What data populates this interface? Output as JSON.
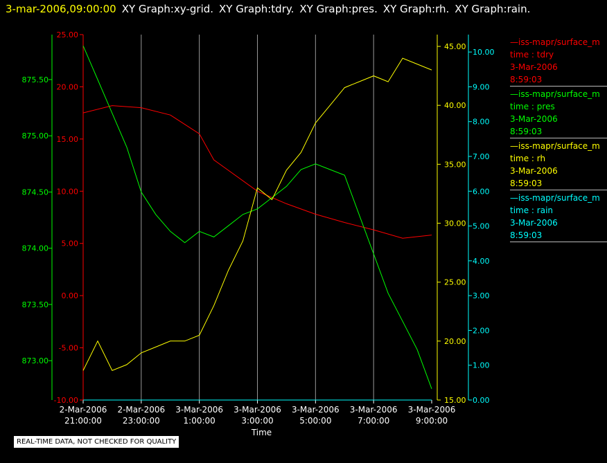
{
  "header": {
    "timestamp": "3-mar-2006,09:00:00",
    "graph_titles": [
      "XY Graph:xy-grid.",
      "XY Graph:tdry.",
      "XY Graph:pres.",
      "XY Graph:rh.",
      "XY Graph:rain."
    ]
  },
  "notice": "REAL-TIME DATA, NOT CHECKED FOR QUALITY",
  "colors": {
    "tdry": "#ff0000",
    "pres": "#00ff00",
    "rh": "#ffff00",
    "rain": "#00ffff",
    "grid": "#999999",
    "background": "#000000"
  },
  "legend": [
    {
      "name": "—iss-mapr/surface_m",
      "var": "time : tdry",
      "date": "3-Mar-2006",
      "time": "8:59:03",
      "color": "#ff0000"
    },
    {
      "name": "—iss-mapr/surface_m",
      "var": "time : pres",
      "date": "3-Mar-2006",
      "time": "8:59:03",
      "color": "#00ff00"
    },
    {
      "name": "—iss-mapr/surface_m",
      "var": "time : rh",
      "date": "3-Mar-2006",
      "time": "8:59:03",
      "color": "#ffff00"
    },
    {
      "name": "—iss-mapr/surface_m",
      "var": "time : rain",
      "date": "3-Mar-2006",
      "time": "8:59:03",
      "color": "#00ffff"
    }
  ],
  "chart_data": {
    "type": "line",
    "xlabel": "Time",
    "x_ticks": [
      [
        "2-Mar-2006",
        "21:00:00"
      ],
      [
        "2-Mar-2006",
        "23:00:00"
      ],
      [
        "3-Mar-2006",
        "1:00:00"
      ],
      [
        "3-Mar-2006",
        "3:00:00"
      ],
      [
        "3-Mar-2006",
        "5:00:00"
      ],
      [
        "3-Mar-2006",
        "7:00:00"
      ],
      [
        "3-Mar-2006",
        "9:00:00"
      ]
    ],
    "xlim": [
      "2006-03-02 21:00",
      "2006-03-03 09:00"
    ],
    "axes": {
      "tdry": {
        "ylim": [
          -10,
          25
        ],
        "ticks": [
          "-10.00",
          "-5.00",
          "0.00",
          "5.00",
          "10.00",
          "15.00",
          "20.00",
          "25.00"
        ]
      },
      "pres": {
        "ylim": [
          872.65,
          875.9
        ],
        "ticks": [
          "873.00",
          "873.50",
          "874.00",
          "874.50",
          "875.00",
          "875.50"
        ]
      },
      "rh": {
        "ylim": [
          15,
          46
        ],
        "ticks": [
          "15.00",
          "20.00",
          "25.00",
          "30.00",
          "35.00",
          "40.00",
          "45.00"
        ]
      },
      "rain": {
        "ylim": [
          0,
          10.5
        ],
        "ticks": [
          "0.00",
          "1.00",
          "2.00",
          "3.00",
          "4.00",
          "5.00",
          "6.00",
          "7.00",
          "8.00",
          "9.00",
          "10.00"
        ]
      }
    },
    "grid": true,
    "series": [
      {
        "name": "time : tdry",
        "color": "#ff0000",
        "axis": "tdry",
        "x": [
          "2006-03-02 21:00",
          "2006-03-02 22:00",
          "2006-03-02 23:00",
          "2006-03-03 00:00",
          "2006-03-03 01:00",
          "2006-03-03 01:30",
          "2006-03-03 02:00",
          "2006-03-03 03:00",
          "2006-03-03 04:00",
          "2006-03-03 05:00",
          "2006-03-03 06:00",
          "2006-03-03 07:00",
          "2006-03-03 08:00",
          "2006-03-03 09:00"
        ],
        "values": [
          17.5,
          18.2,
          18.0,
          17.3,
          15.5,
          13.0,
          12.0,
          10.0,
          8.8,
          7.8,
          7.0,
          6.3,
          5.5,
          5.8
        ]
      },
      {
        "name": "time : pres",
        "color": "#00ff00",
        "axis": "pres",
        "x": [
          "2006-03-02 21:00",
          "2006-03-02 21:30",
          "2006-03-02 22:00",
          "2006-03-02 22:30",
          "2006-03-02 23:00",
          "2006-03-02 23:30",
          "2006-03-03 00:00",
          "2006-03-03 00:30",
          "2006-03-03 01:00",
          "2006-03-03 01:30",
          "2006-03-03 02:00",
          "2006-03-03 02:30",
          "2006-03-03 03:00",
          "2006-03-03 03:30",
          "2006-03-03 04:00",
          "2006-03-03 04:30",
          "2006-03-03 05:00",
          "2006-03-03 05:30",
          "2006-03-03 06:00",
          "2006-03-03 06:30",
          "2006-03-03 07:00",
          "2006-03-03 07:30",
          "2006-03-03 08:00",
          "2006-03-03 08:30",
          "2006-03-03 09:00"
        ],
        "values": [
          875.8,
          875.5,
          875.2,
          874.9,
          874.5,
          874.3,
          874.15,
          874.05,
          874.15,
          874.1,
          874.2,
          874.3,
          874.35,
          874.45,
          874.55,
          874.7,
          874.75,
          874.7,
          874.65,
          874.3,
          873.95,
          873.6,
          873.35,
          873.1,
          872.75
        ]
      },
      {
        "name": "time : rh",
        "color": "#ffff00",
        "axis": "rh",
        "x": [
          "2006-03-02 21:00",
          "2006-03-02 21:30",
          "2006-03-02 22:00",
          "2006-03-02 22:30",
          "2006-03-02 23:00",
          "2006-03-02 23:30",
          "2006-03-03 00:00",
          "2006-03-03 00:30",
          "2006-03-03 01:00",
          "2006-03-03 01:30",
          "2006-03-03 02:00",
          "2006-03-03 02:30",
          "2006-03-03 03:00",
          "2006-03-03 03:30",
          "2006-03-03 04:00",
          "2006-03-03 04:30",
          "2006-03-03 05:00",
          "2006-03-03 05:30",
          "2006-03-03 06:00",
          "2006-03-03 06:30",
          "2006-03-03 07:00",
          "2006-03-03 07:30",
          "2006-03-03 08:00",
          "2006-03-03 08:30",
          "2006-03-03 09:00"
        ],
        "values": [
          17.5,
          20.0,
          17.5,
          18.0,
          19.0,
          19.5,
          20.0,
          20.0,
          20.5,
          23.0,
          26.0,
          28.5,
          33.0,
          32.0,
          34.5,
          36.0,
          38.5,
          40.0,
          41.5,
          42.0,
          42.5,
          42.0,
          44.0,
          43.5,
          43.0
        ]
      },
      {
        "name": "time : rain",
        "color": "#00ffff",
        "axis": "rain",
        "x": [
          "2006-03-02 21:00",
          "2006-03-03 09:00"
        ],
        "values": [
          0.0,
          0.0
        ]
      }
    ]
  }
}
